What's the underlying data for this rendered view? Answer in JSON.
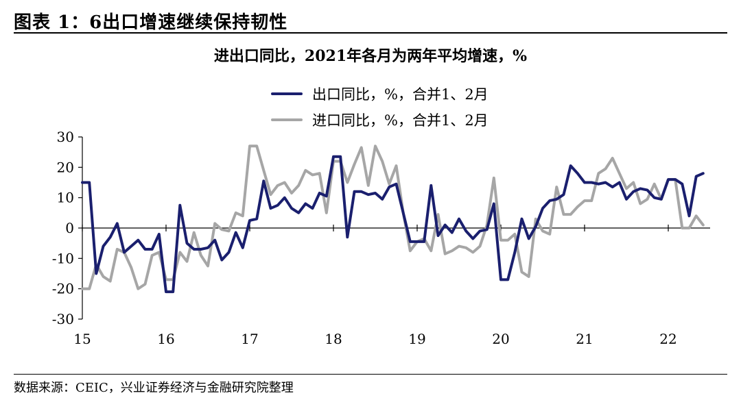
{
  "figure_title": "图表 1：6出口增速继续保持韧性",
  "source": "数据来源：CEIC，兴业证券经济与金融研究院整理",
  "chart_data": {
    "type": "line",
    "title": "进出口同比，2021年各月为两年平均增速，%",
    "xlabel": "",
    "ylabel": "",
    "ylim": [
      -30,
      30
    ],
    "yticks": [
      -30,
      -20,
      -10,
      0,
      10,
      20,
      30
    ],
    "x_tick_labels": [
      "15",
      "16",
      "17",
      "18",
      "19",
      "20",
      "21",
      "22"
    ],
    "legend_placement": "top-center",
    "grid": false,
    "series": [
      {
        "name": "出口同比，%，合并1、2月",
        "color": "#1a1f6e",
        "values": [
          15,
          15,
          -15,
          -6,
          -3,
          1.5,
          -8,
          -6,
          -4,
          -7,
          -7,
          -2,
          -21,
          -21,
          7.5,
          -5,
          -7,
          -7,
          -6.5,
          -4,
          -10.5,
          -8,
          -1.5,
          -6.5,
          2.5,
          3,
          15.5,
          6.5,
          7.5,
          10,
          6.5,
          5,
          8,
          6.5,
          11.5,
          10.5,
          23.5,
          23.5,
          -3,
          12,
          12,
          11,
          11.5,
          9.5,
          13.5,
          14.5,
          5,
          -4.5,
          -4.5,
          -4.5,
          14,
          -2.5,
          1,
          -1.5,
          3,
          -1,
          -3.5,
          -1,
          -0.5,
          8,
          -17,
          -17,
          -8,
          3,
          -3.5,
          0.5,
          6.5,
          9,
          9.5,
          11,
          20.5,
          18,
          15,
          15,
          14.5,
          15,
          13.5,
          15,
          9.5,
          12,
          13,
          12.5,
          10,
          9.5,
          16,
          16,
          14.5,
          4,
          17,
          18
        ]
      },
      {
        "name": "进口同比，%，合并1、2月",
        "color": "#a6a6a6",
        "values": [
          -20,
          -20,
          -12,
          -16,
          -17.5,
          -7,
          -8,
          -13,
          -20,
          -18.5,
          -9,
          -8,
          -17,
          -17,
          -8,
          -11,
          -1.5,
          -9,
          -12.5,
          1.5,
          -0.5,
          -1,
          5,
          4,
          27,
          27,
          19,
          11,
          14,
          15,
          11.5,
          14,
          19,
          17.5,
          18,
          5,
          22,
          22,
          15,
          21,
          26.5,
          14,
          27,
          22,
          14.5,
          20.5,
          5,
          -7.5,
          -4.5,
          -3.5,
          -7.5,
          4.5,
          -8.5,
          -7.5,
          -6,
          -6.5,
          -8,
          -6,
          1,
          16.5,
          -4,
          -4,
          -2,
          -14.5,
          -16,
          3,
          -1,
          -2,
          13.5,
          4.5,
          4.5,
          7,
          9,
          9,
          18,
          19.5,
          23,
          18,
          13,
          15,
          8,
          9.5,
          14.5,
          9.5,
          16,
          16,
          0,
          0,
          4,
          1
        ]
      }
    ]
  }
}
